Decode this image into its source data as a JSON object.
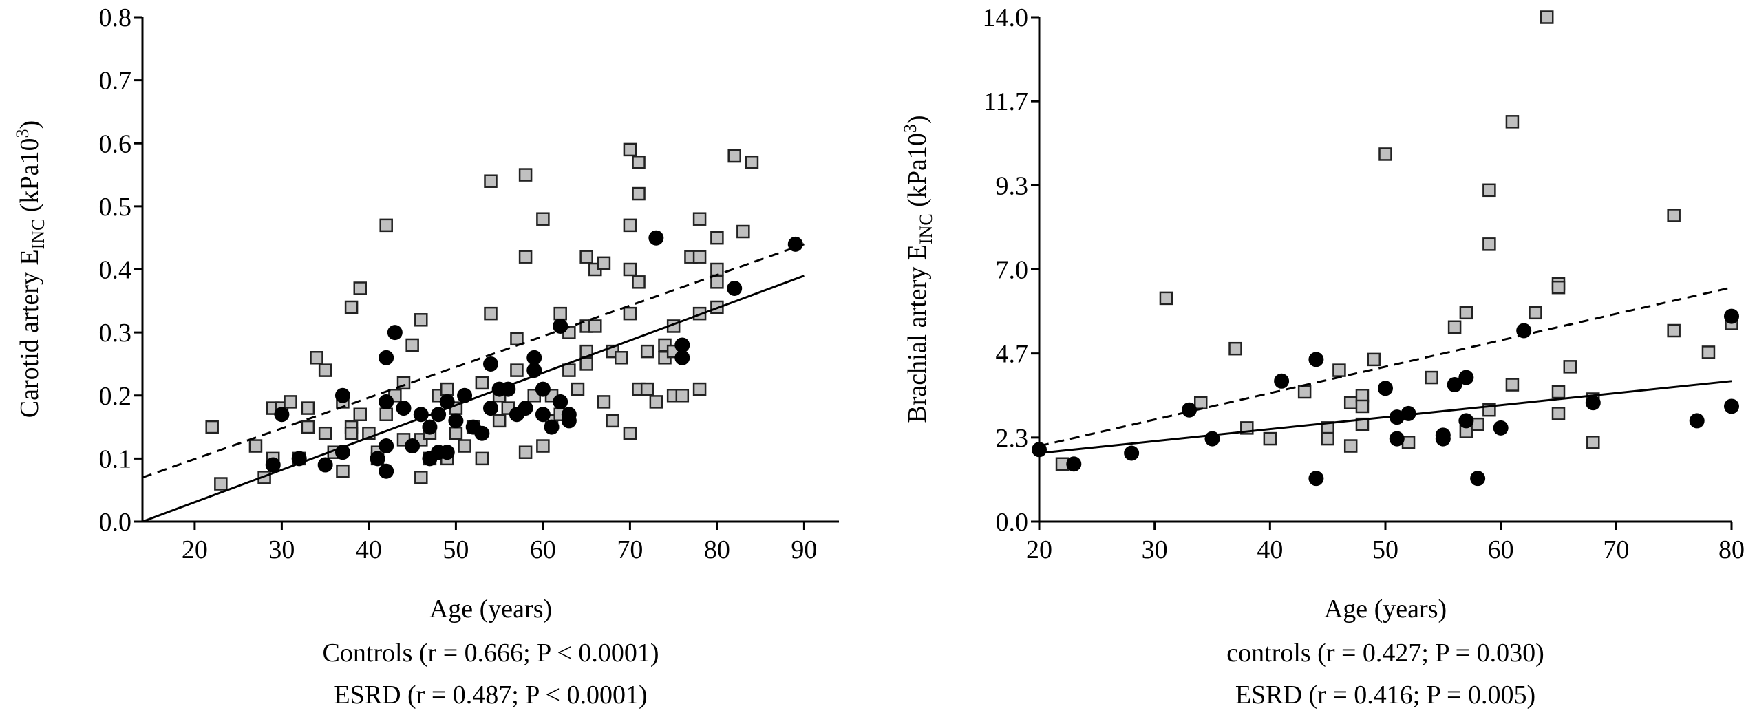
{
  "chart_data": [
    {
      "type": "scatter",
      "title": "",
      "xlabel": "Age (years)",
      "ylabel": "Carotid artery E",
      "ylabel_sub": "INC",
      "ylabel_unit_open": " (kPa10",
      "ylabel_unit_sup": "3",
      "ylabel_unit_close": ")",
      "xlim": [
        14,
        94
      ],
      "ylim": [
        0,
        0.8
      ],
      "x_ticks": [
        20,
        30,
        40,
        50,
        60,
        70,
        80,
        90
      ],
      "y_ticks": [
        0.0,
        0.1,
        0.2,
        0.3,
        0.4,
        0.5,
        0.6,
        0.7,
        0.8
      ],
      "y_tick_labels": [
        "0.0",
        "0.1",
        "0.2",
        "0.3",
        "0.4",
        "0.5",
        "0.6",
        "0.7",
        "0.8"
      ],
      "x_tick_labels": [
        "20",
        "30",
        "40",
        "50",
        "60",
        "70",
        "80",
        "90"
      ],
      "grid": false,
      "captions": [
        "Controls (r = 0.666; P < 0.0001)",
        "ESRD (r = 0.487; P < 0.0001)"
      ],
      "series": [
        {
          "marker": "square",
          "color": "#c0c0c0",
          "points": [
            [
              22,
              0.15
            ],
            [
              23,
              0.06
            ],
            [
              27,
              0.12
            ],
            [
              28,
              0.07
            ],
            [
              29,
              0.1
            ],
            [
              29,
              0.18
            ],
            [
              30,
              0.18
            ],
            [
              31,
              0.19
            ],
            [
              32,
              0.1
            ],
            [
              33,
              0.15
            ],
            [
              33,
              0.18
            ],
            [
              34,
              0.26
            ],
            [
              35,
              0.24
            ],
            [
              35,
              0.14
            ],
            [
              36,
              0.11
            ],
            [
              37,
              0.08
            ],
            [
              37,
              0.19
            ],
            [
              38,
              0.34
            ],
            [
              38,
              0.15
            ],
            [
              38,
              0.14
            ],
            [
              39,
              0.37
            ],
            [
              39,
              0.17
            ],
            [
              40,
              0.14
            ],
            [
              41,
              0.1
            ],
            [
              41,
              0.11
            ],
            [
              42,
              0.47
            ],
            [
              42,
              0.17
            ],
            [
              43,
              0.2
            ],
            [
              44,
              0.22
            ],
            [
              44,
              0.13
            ],
            [
              45,
              0.28
            ],
            [
              46,
              0.32
            ],
            [
              46,
              0.07
            ],
            [
              46,
              0.13
            ],
            [
              47,
              0.1
            ],
            [
              47,
              0.14
            ],
            [
              48,
              0.2
            ],
            [
              49,
              0.21
            ],
            [
              49,
              0.1
            ],
            [
              50,
              0.14
            ],
            [
              50,
              0.18
            ],
            [
              51,
              0.12
            ],
            [
              52,
              0.15
            ],
            [
              53,
              0.1
            ],
            [
              53,
              0.22
            ],
            [
              54,
              0.54
            ],
            [
              54,
              0.33
            ],
            [
              55,
              0.2
            ],
            [
              55,
              0.16
            ],
            [
              56,
              0.18
            ],
            [
              57,
              0.29
            ],
            [
              57,
              0.24
            ],
            [
              58,
              0.55
            ],
            [
              58,
              0.42
            ],
            [
              58,
              0.11
            ],
            [
              59,
              0.2
            ],
            [
              60,
              0.48
            ],
            [
              60,
              0.12
            ],
            [
              61,
              0.16
            ],
            [
              61,
              0.2
            ],
            [
              62,
              0.33
            ],
            [
              62,
              0.17
            ],
            [
              63,
              0.3
            ],
            [
              63,
              0.24
            ],
            [
              64,
              0.21
            ],
            [
              65,
              0.42
            ],
            [
              65,
              0.31
            ],
            [
              65,
              0.27
            ],
            [
              65,
              0.25
            ],
            [
              66,
              0.4
            ],
            [
              66,
              0.31
            ],
            [
              67,
              0.41
            ],
            [
              67,
              0.19
            ],
            [
              68,
              0.16
            ],
            [
              68,
              0.27
            ],
            [
              69,
              0.26
            ],
            [
              70,
              0.59
            ],
            [
              70,
              0.47
            ],
            [
              70,
              0.4
            ],
            [
              70,
              0.33
            ],
            [
              70,
              0.14
            ],
            [
              71,
              0.57
            ],
            [
              71,
              0.52
            ],
            [
              71,
              0.38
            ],
            [
              71,
              0.21
            ],
            [
              72,
              0.21
            ],
            [
              72,
              0.27
            ],
            [
              73,
              0.19
            ],
            [
              74,
              0.26
            ],
            [
              74,
              0.28
            ],
            [
              75,
              0.31
            ],
            [
              75,
              0.27
            ],
            [
              75,
              0.2
            ],
            [
              76,
              0.2
            ],
            [
              77,
              0.42
            ],
            [
              78,
              0.48
            ],
            [
              78,
              0.42
            ],
            [
              78,
              0.33
            ],
            [
              78,
              0.21
            ],
            [
              80,
              0.45
            ],
            [
              80,
              0.4
            ],
            [
              80,
              0.38
            ],
            [
              80,
              0.34
            ],
            [
              82,
              0.58
            ],
            [
              83,
              0.46
            ],
            [
              84,
              0.57
            ]
          ]
        },
        {
          "marker": "circle",
          "color": "#000000",
          "points": [
            [
              29,
              0.09
            ],
            [
              30,
              0.17
            ],
            [
              32,
              0.1
            ],
            [
              35,
              0.09
            ],
            [
              37,
              0.2
            ],
            [
              37,
              0.11
            ],
            [
              41,
              0.1
            ],
            [
              42,
              0.08
            ],
            [
              42,
              0.12
            ],
            [
              42,
              0.19
            ],
            [
              42,
              0.26
            ],
            [
              43,
              0.3
            ],
            [
              44,
              0.18
            ],
            [
              45,
              0.12
            ],
            [
              46,
              0.17
            ],
            [
              47,
              0.1
            ],
            [
              47,
              0.15
            ],
            [
              48,
              0.17
            ],
            [
              48,
              0.11
            ],
            [
              49,
              0.19
            ],
            [
              49,
              0.11
            ],
            [
              50,
              0.16
            ],
            [
              51,
              0.2
            ],
            [
              52,
              0.15
            ],
            [
              53,
              0.14
            ],
            [
              54,
              0.25
            ],
            [
              54,
              0.18
            ],
            [
              55,
              0.21
            ],
            [
              56,
              0.21
            ],
            [
              57,
              0.17
            ],
            [
              58,
              0.18
            ],
            [
              59,
              0.26
            ],
            [
              59,
              0.24
            ],
            [
              60,
              0.17
            ],
            [
              60,
              0.21
            ],
            [
              61,
              0.15
            ],
            [
              62,
              0.31
            ],
            [
              62,
              0.19
            ],
            [
              63,
              0.16
            ],
            [
              63,
              0.17
            ],
            [
              73,
              0.45
            ],
            [
              76,
              0.26
            ],
            [
              76,
              0.28
            ],
            [
              82,
              0.37
            ],
            [
              89,
              0.44
            ]
          ]
        }
      ],
      "trendlines": [
        {
          "style": "dashed",
          "x": [
            14,
            90
          ],
          "y": [
            0.07,
            0.44
          ]
        },
        {
          "style": "solid",
          "x": [
            14,
            90
          ],
          "y": [
            0.0,
            0.39
          ]
        }
      ]
    },
    {
      "type": "scatter",
      "title": "",
      "xlabel": "Age (years)",
      "ylabel": "Brachial artery E",
      "ylabel_sub": "INC",
      "ylabel_unit_open": " (kPa10",
      "ylabel_unit_sup": "3",
      "ylabel_unit_close": ")",
      "xlim": [
        20,
        80
      ],
      "ylim": [
        0,
        14
      ],
      "x_ticks": [
        20,
        30,
        40,
        50,
        60,
        70,
        80
      ],
      "y_ticks": [
        0,
        2.333,
        4.667,
        7.0,
        9.333,
        11.667,
        14.0
      ],
      "y_tick_labels": [
        "0.0",
        "2.3",
        "4.7",
        "7.0",
        "9.3",
        "11.7",
        "14.0"
      ],
      "x_tick_labels": [
        "20",
        "30",
        "40",
        "50",
        "60",
        "70",
        "80"
      ],
      "grid": false,
      "captions": [
        "controls (r = 0.427; P = 0.030)",
        "ESRD (r = 0.416; P = 0.005)"
      ],
      "series": [
        {
          "marker": "square",
          "color": "#c0c0c0",
          "points": [
            [
              22,
              1.6
            ],
            [
              31,
              6.2
            ],
            [
              34,
              3.3
            ],
            [
              37,
              4.8
            ],
            [
              38,
              2.6
            ],
            [
              40,
              2.3
            ],
            [
              43,
              3.6
            ],
            [
              45,
              2.6
            ],
            [
              45,
              2.3
            ],
            [
              46,
              4.2
            ],
            [
              47,
              2.1
            ],
            [
              47,
              3.3
            ],
            [
              48,
              3.5
            ],
            [
              48,
              3.2
            ],
            [
              48,
              2.7
            ],
            [
              49,
              4.5
            ],
            [
              50,
              10.2
            ],
            [
              52,
              2.2
            ],
            [
              54,
              4.0
            ],
            [
              56,
              5.4
            ],
            [
              57,
              5.8
            ],
            [
              57,
              2.5
            ],
            [
              58,
              2.7
            ],
            [
              59,
              3.1
            ],
            [
              59,
              9.2
            ],
            [
              59,
              7.7
            ],
            [
              61,
              11.1
            ],
            [
              61,
              3.8
            ],
            [
              63,
              5.8
            ],
            [
              64,
              14.0
            ],
            [
              65,
              6.6
            ],
            [
              65,
              6.5
            ],
            [
              65,
              3.6
            ],
            [
              65,
              3.0
            ],
            [
              66,
              4.3
            ],
            [
              68,
              3.4
            ],
            [
              68,
              2.2
            ],
            [
              75,
              8.5
            ],
            [
              75,
              5.3
            ],
            [
              78,
              4.7
            ],
            [
              80,
              5.5
            ]
          ]
        },
        {
          "marker": "circle",
          "color": "#000000",
          "points": [
            [
              20,
              2.0
            ],
            [
              23,
              1.6
            ],
            [
              28,
              1.9
            ],
            [
              33,
              3.1
            ],
            [
              35,
              2.3
            ],
            [
              41,
              3.9
            ],
            [
              44,
              4.5
            ],
            [
              44,
              1.2
            ],
            [
              50,
              3.7
            ],
            [
              51,
              2.3
            ],
            [
              51,
              2.9
            ],
            [
              52,
              3.0
            ],
            [
              55,
              2.3
            ],
            [
              55,
              2.4
            ],
            [
              56,
              3.8
            ],
            [
              57,
              4.0
            ],
            [
              57,
              2.8
            ],
            [
              58,
              1.2
            ],
            [
              60,
              2.6
            ],
            [
              62,
              5.3
            ],
            [
              68,
              3.3
            ],
            [
              77,
              2.8
            ],
            [
              80,
              3.2
            ],
            [
              80,
              5.7
            ]
          ]
        }
      ],
      "trendlines": [
        {
          "style": "dashed",
          "x": [
            20,
            80
          ],
          "y": [
            2.1,
            6.5
          ]
        },
        {
          "style": "solid",
          "x": [
            20,
            80
          ],
          "y": [
            1.9,
            3.9
          ]
        }
      ]
    }
  ]
}
